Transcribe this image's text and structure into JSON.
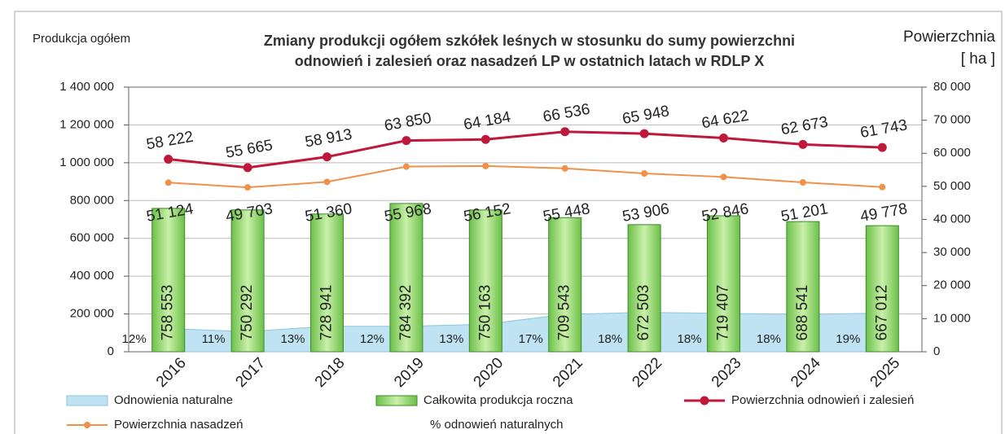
{
  "chart_data": {
    "type": "bar",
    "title": [
      "Zmiany produkcji ogółem szkółek leśnych w stosunku do sumy powierzchni",
      "odnowień i zalesień oraz nasadzeń LP w ostatnich latach w RDLP X"
    ],
    "ylabel": "Produkcja ogółem",
    "y2label": [
      "Powierzchnia",
      "[ ha ]"
    ],
    "categories": [
      "2016",
      "2017",
      "2018",
      "2019",
      "2020",
      "2021",
      "2022",
      "2023",
      "2024",
      "2025"
    ],
    "ylim": [
      0,
      1400000
    ],
    "yticks": [
      0,
      {
        "value": 200000,
        "label": "200 000"
      },
      {
        "value": 400000,
        "label": "400 000"
      },
      {
        "value": 600000,
        "label": "600 000"
      },
      {
        "value": 800000,
        "label": "800 000"
      },
      {
        "value": 1000000,
        "label": "1 000 000"
      },
      {
        "value": 1200000,
        "label": "1 200 000"
      },
      {
        "value": 1400000,
        "label": "1 400 000"
      }
    ],
    "y2lim": [
      0,
      80000
    ],
    "y2ticks": [
      0,
      {
        "value": 10000,
        "label": "10 000"
      },
      {
        "value": 20000,
        "label": "20 000"
      },
      {
        "value": 30000,
        "label": "30 000"
      },
      {
        "value": 40000,
        "label": "40 000"
      },
      {
        "value": 50000,
        "label": "50 000"
      },
      {
        "value": 60000,
        "label": "60 000"
      },
      {
        "value": 70000,
        "label": "70 000"
      },
      {
        "value": 80000,
        "label": "80 000"
      }
    ],
    "grid": true,
    "series": [
      {
        "name": "Odnowienia naturalne",
        "type": "area",
        "axis": "y2",
        "color": "#bfe3f2",
        "values": [
          7000,
          6100,
          7700,
          7700,
          8300,
          11300,
          11900,
          11600,
          11300,
          11700
        ]
      },
      {
        "name": "Całkowita produkcja roczna",
        "type": "bar",
        "color": "#8fd66a",
        "values": [
          758553,
          750292,
          728941,
          784392,
          750163,
          709543,
          672503,
          719407,
          688541,
          667012
        ],
        "value_labels": [
          "758 553",
          "750 292",
          "728 941",
          "784 392",
          "750 163",
          "709 543",
          "672 503",
          "719 407",
          "688 541",
          "667 012"
        ]
      },
      {
        "name": "Powierzchnia odnowień i zalesień",
        "type": "line",
        "axis": "y2",
        "color": "#c0183a",
        "values": [
          58222,
          55665,
          58913,
          63850,
          64184,
          66536,
          65948,
          64622,
          62673,
          61743
        ],
        "value_labels": [
          "58 222",
          "55 665",
          "58 913",
          "63 850",
          "64 184",
          "66 536",
          "65 948",
          "64 622",
          "62 673",
          "61 743"
        ]
      },
      {
        "name": "Powierzchnia nasadzeń",
        "type": "line",
        "axis": "y2",
        "color": "#f0914a",
        "values": [
          51124,
          49703,
          51360,
          55968,
          56152,
          55448,
          53906,
          52846,
          51201,
          49778
        ],
        "value_labels": [
          "51 124",
          "49 703",
          "51 360",
          "55 968",
          "56 152",
          "55 448",
          "53 906",
          "52 846",
          "51 201",
          "49 778"
        ]
      },
      {
        "name": "% odnowień naturalnych",
        "type": "text",
        "values": [
          12,
          11,
          13,
          12,
          13,
          17,
          18,
          18,
          18,
          19
        ],
        "value_labels": [
          "12%",
          "11%",
          "13%",
          "12%",
          "13%",
          "17%",
          "18%",
          "18%",
          "18%",
          "19%"
        ]
      }
    ]
  }
}
